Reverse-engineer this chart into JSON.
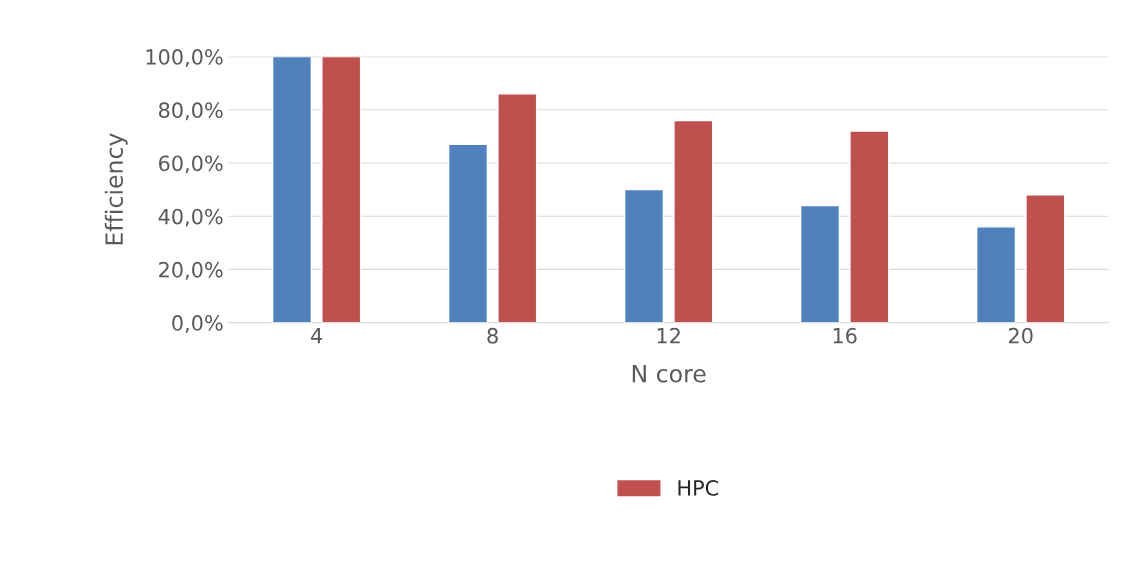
{
  "chart_data": {
    "type": "bar",
    "xlabel": "N core",
    "ylabel": "Efficiency",
    "categories": [
      "4",
      "8",
      "12",
      "16",
      "20"
    ],
    "series": [
      {
        "color": "#4f81bd",
        "values": [
          100,
          67,
          50,
          44,
          36
        ]
      },
      {
        "name": "HPC",
        "color": "#c0504d",
        "values": [
          100,
          86,
          76,
          72,
          48
        ]
      }
    ],
    "ylim": [
      0,
      100
    ],
    "yticks": [
      {
        "value": 0,
        "label": "0,0%"
      },
      {
        "value": 20,
        "label": "20,0%"
      },
      {
        "value": 40,
        "label": "40,0%"
      },
      {
        "value": 60,
        "label": "60,0%"
      },
      {
        "value": 80,
        "label": "80,0%"
      },
      {
        "value": 100,
        "label": "100,0%"
      }
    ],
    "grid": "y",
    "legend": "bottom"
  }
}
